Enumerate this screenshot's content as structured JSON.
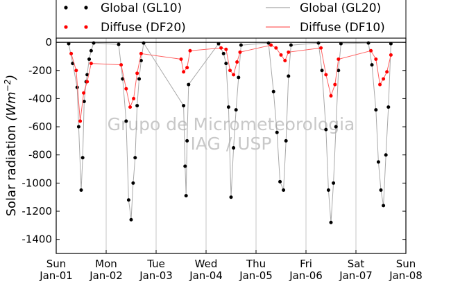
{
  "chart_data": {
    "type": "scatter",
    "ylabel": "Solar radiation",
    "ylabel_unit_base": "(Wm",
    "ylabel_unit_exp": "−2",
    "ylabel_unit_close": ")",
    "ylim": [
      -1500,
      30
    ],
    "yticks": [
      0,
      -200,
      -400,
      -600,
      -800,
      -1000,
      -1200,
      -1400
    ],
    "xlim": [
      "Jan-01 00:00",
      "Jan-08 00:00"
    ],
    "xticks": [
      {
        "day": "Sun",
        "date": "Jan-01"
      },
      {
        "day": "Mon",
        "date": "Jan-02"
      },
      {
        "day": "Tue",
        "date": "Jan-03"
      },
      {
        "day": "Wed",
        "date": "Jan-04"
      },
      {
        "day": "Thu",
        "date": "Jan-05"
      },
      {
        "day": "Fri",
        "date": "Jan-06"
      },
      {
        "day": "Sat",
        "date": "Jan-07"
      },
      {
        "day": "Sun",
        "date": "Jan-08"
      }
    ],
    "grid": "vertical",
    "legend_placement": "top",
    "legend": [
      {
        "label": "Global (GL10)",
        "style": "dotted-markers",
        "color": "#000000"
      },
      {
        "label": "Diffuse (DF20)",
        "style": "dotted-markers",
        "color": "#ff0000"
      },
      {
        "label": "Global (GL20)",
        "style": "line",
        "color": "#a8a8a8"
      },
      {
        "label": "Diffuse (DF10)",
        "style": "line",
        "color": "#ff6060"
      }
    ],
    "watermark": [
      "Grupo de Micrometeorologia",
      "IAG / USP"
    ],
    "series": [
      {
        "name": "Global (GL10)",
        "color": "#000000",
        "x_unit": "days since Jan-01 00:00",
        "x": [
          0.25,
          0.33,
          0.42,
          0.45,
          0.5,
          0.53,
          0.56,
          0.6,
          0.62,
          0.66,
          0.7,
          0.75,
          1.25,
          1.33,
          1.4,
          1.45,
          1.5,
          1.54,
          1.58,
          1.62,
          1.66,
          1.7,
          1.75,
          2.55,
          2.58,
          2.6,
          2.62,
          2.65,
          3.25,
          3.35,
          3.4,
          3.45,
          3.5,
          3.55,
          3.6,
          3.65,
          3.7,
          4.25,
          4.35,
          4.42,
          4.48,
          4.55,
          4.6,
          4.65,
          4.7,
          5.25,
          5.32,
          5.4,
          5.45,
          5.5,
          5.55,
          5.6,
          5.65,
          5.7,
          6.25,
          6.32,
          6.4,
          6.45,
          6.5,
          6.55,
          6.6,
          6.65,
          6.7
        ],
        "y": [
          -10,
          -150,
          -320,
          -600,
          -1050,
          -820,
          -420,
          -280,
          -230,
          -120,
          -60,
          -5,
          -15,
          -260,
          -560,
          -1120,
          -1260,
          -1000,
          -820,
          -450,
          -260,
          -130,
          -5,
          -450,
          -880,
          -1090,
          -700,
          -300,
          -10,
          -80,
          -150,
          -460,
          -1100,
          -750,
          -480,
          -250,
          -20,
          -5,
          -350,
          -640,
          -990,
          -1050,
          -700,
          -240,
          -20,
          -5,
          -200,
          -620,
          -1050,
          -1280,
          -1000,
          -600,
          -200,
          -10,
          -5,
          -160,
          -480,
          -850,
          -1050,
          -1160,
          -800,
          -460,
          -10
        ]
      },
      {
        "name": "Diffuse (DF20)",
        "color": "#ff0000",
        "x_unit": "days since Jan-01 00:00",
        "x": [
          0.3,
          0.4,
          0.48,
          0.55,
          0.62,
          0.7,
          1.3,
          1.4,
          1.48,
          1.55,
          1.62,
          1.7,
          2.5,
          2.55,
          2.62,
          2.68,
          3.3,
          3.4,
          3.48,
          3.55,
          3.62,
          3.68,
          4.3,
          4.4,
          4.5,
          4.58,
          4.65,
          5.3,
          5.4,
          5.5,
          5.58,
          5.65,
          6.3,
          6.4,
          6.48,
          6.55,
          6.62,
          6.7
        ],
        "y": [
          -80,
          -200,
          -560,
          -360,
          -280,
          -150,
          -160,
          -330,
          -460,
          -400,
          -220,
          -80,
          -120,
          -210,
          -180,
          -60,
          -40,
          -50,
          -200,
          -230,
          -140,
          -70,
          -20,
          -40,
          -90,
          -130,
          -70,
          -40,
          -230,
          -380,
          -300,
          -120,
          -60,
          -120,
          -300,
          -260,
          -210,
          -90
        ]
      }
    ]
  }
}
